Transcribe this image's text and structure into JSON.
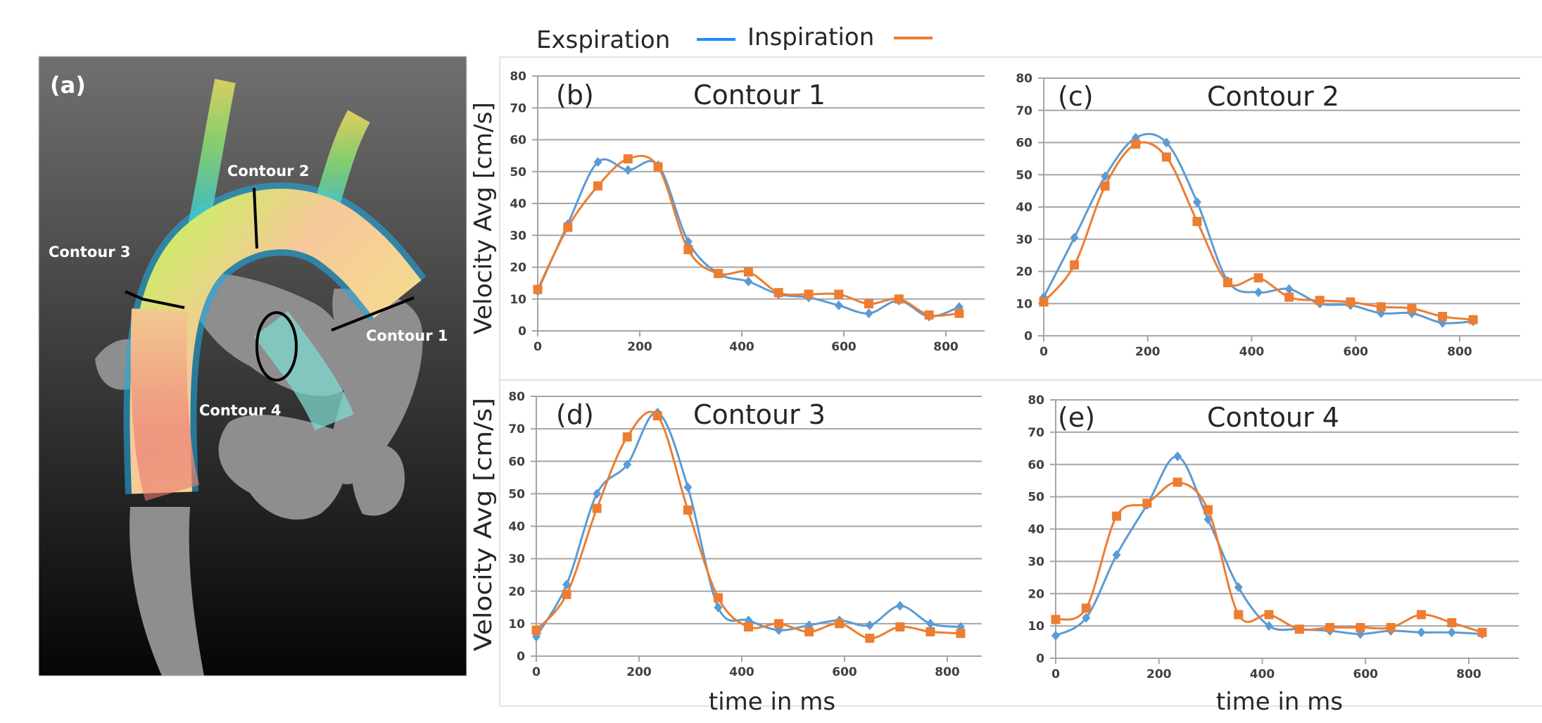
{
  "legend": {
    "exspiration_label": "Exspiration",
    "inspiration_label": "Inspiration",
    "exspiration_color": "#1a8cff",
    "inspiration_color": "#ed7d31"
  },
  "panel_a": {
    "label": "(a)",
    "contour_1": "Contour 1",
    "contour_2": "Contour 2",
    "contour_3": "Contour 3",
    "contour_4": "Contour 4"
  },
  "y_axis_label": "Velocity Avg [cm/s]",
  "x_axis_label": "time in ms",
  "colors": {
    "exspiration_series": "#5b9bd5",
    "inspiration_series": "#ed7d31",
    "grid": "#a6a6a6"
  },
  "chart_data": [
    {
      "type": "line",
      "panel": "(b)",
      "title": "Contour 1",
      "xlabel": "",
      "ylabel": "Velocity Avg [cm/s]",
      "xlim": [
        0,
        876
      ],
      "ylim": [
        0,
        80
      ],
      "xticks": [
        0,
        200,
        400,
        600,
        800
      ],
      "yticks": [
        0,
        10,
        20,
        30,
        40,
        50,
        60,
        70,
        80
      ],
      "grid": "horizontal",
      "x": [
        0,
        59,
        118,
        177,
        236,
        295,
        354,
        413,
        472,
        531,
        590,
        649,
        708,
        767,
        826
      ],
      "series": [
        {
          "name": "Exspiration",
          "marker": "diamond",
          "values": [
            12.5,
            33.5,
            53,
            50.5,
            52,
            28,
            18,
            15.5,
            11.5,
            10.5,
            8,
            5.5,
            9.5,
            4.5,
            7.5
          ]
        },
        {
          "name": "Inspiration",
          "marker": "square",
          "values": [
            13,
            32.5,
            45.5,
            54,
            51.5,
            25.5,
            18,
            18.5,
            12,
            11.5,
            11.5,
            8.5,
            10,
            5,
            5.5
          ]
        }
      ]
    },
    {
      "type": "line",
      "panel": "(c)",
      "title": "Contour 2",
      "xlabel": "",
      "ylabel": "",
      "xlim": [
        0,
        876
      ],
      "ylim": [
        0,
        80
      ],
      "xticks": [
        0,
        200,
        400,
        600,
        800
      ],
      "yticks": [
        0,
        10,
        20,
        30,
        40,
        50,
        60,
        70,
        80
      ],
      "grid": "horizontal",
      "x": [
        0,
        59,
        118,
        177,
        236,
        295,
        354,
        413,
        472,
        531,
        590,
        649,
        708,
        767,
        826
      ],
      "series": [
        {
          "name": "Exspiration",
          "marker": "diamond",
          "values": [
            12,
            30.5,
            49.5,
            61.5,
            60,
            41.5,
            17,
            13.5,
            14.5,
            10,
            9.5,
            7,
            7,
            4,
            4.5
          ]
        },
        {
          "name": "Inspiration",
          "marker": "square",
          "values": [
            10.5,
            22,
            46.5,
            59.5,
            55.5,
            35.5,
            16.5,
            18,
            12,
            11,
            10.5,
            9,
            8.5,
            6,
            5
          ]
        }
      ]
    },
    {
      "type": "line",
      "panel": "(d)",
      "title": "Contour 3",
      "xlabel": "time in ms",
      "ylabel": "Velocity Avg [cm/s]",
      "xlim": [
        0,
        876
      ],
      "ylim": [
        0,
        80
      ],
      "xticks": [
        0,
        200,
        400,
        600,
        800
      ],
      "yticks": [
        0,
        10,
        20,
        30,
        40,
        50,
        60,
        70,
        80
      ],
      "grid": "horizontal",
      "x": [
        0,
        59,
        118,
        177,
        236,
        295,
        354,
        413,
        472,
        531,
        590,
        649,
        708,
        767,
        826
      ],
      "series": [
        {
          "name": "Exspiration",
          "marker": "diamond",
          "values": [
            6,
            22,
            50,
            59,
            75,
            52,
            15,
            11,
            8,
            9.5,
            11,
            9.5,
            15.5,
            10,
            9
          ]
        },
        {
          "name": "Inspiration",
          "marker": "square",
          "values": [
            8,
            19,
            45.5,
            67.5,
            74,
            45,
            18,
            9,
            10,
            7.5,
            10,
            5.5,
            9,
            7.5,
            7
          ]
        }
      ]
    },
    {
      "type": "line",
      "panel": "(e)",
      "title": "Contour 4",
      "xlabel": "time in ms",
      "ylabel": "",
      "xlim": [
        0,
        876
      ],
      "ylim": [
        0,
        80
      ],
      "xticks": [
        0,
        200,
        400,
        600,
        800
      ],
      "yticks": [
        0,
        10,
        20,
        30,
        40,
        50,
        60,
        70,
        80
      ],
      "grid": "horizontal",
      "x": [
        0,
        59,
        118,
        177,
        236,
        295,
        354,
        413,
        472,
        531,
        590,
        649,
        708,
        767,
        826
      ],
      "series": [
        {
          "name": "Exspiration",
          "marker": "diamond",
          "values": [
            7,
            12.5,
            32,
            47.5,
            62.5,
            43,
            22,
            10,
            9,
            8.5,
            7.5,
            8.5,
            8,
            8,
            7.5
          ]
        },
        {
          "name": "Inspiration",
          "marker": "square",
          "values": [
            12,
            15.5,
            44,
            48,
            54.5,
            46,
            13.5,
            13.5,
            9,
            9.5,
            9.5,
            9.5,
            13.5,
            11,
            8
          ]
        }
      ]
    }
  ]
}
